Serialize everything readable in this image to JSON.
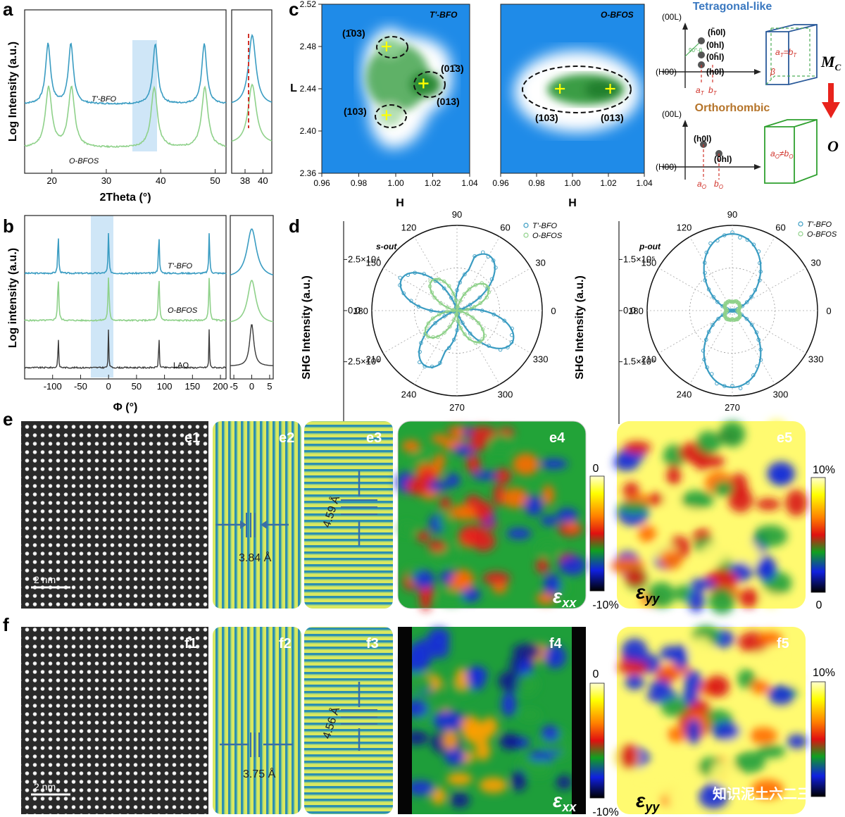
{
  "panels": {
    "a": "a",
    "b": "b",
    "c": "c",
    "d": "d",
    "e": "e",
    "f": "f"
  },
  "colors": {
    "tbfo": "#3a9cc2",
    "obfos": "#8fd18a",
    "lao": "#3a3a3a",
    "highlight": "#cfe6f7",
    "dashed_red": "#d0322a",
    "map_bg": "#1f8be8",
    "map_green": "#2f9a3f"
  },
  "chart_data": [
    {
      "id": "a-main",
      "type": "line",
      "xlabel": "2Theta (°)",
      "ylabel": "Log Intensity (a.u.)",
      "xlim": [
        15,
        52
      ],
      "xticks": [
        20,
        30,
        40,
        50
      ],
      "series": [
        {
          "name": "T'-BFO",
          "peaks": [
            19.3,
            23.5,
            39.0,
            48.0
          ]
        },
        {
          "name": "O-BFOS",
          "peaks": [
            19.4,
            23.6,
            38.8,
            48.1
          ]
        }
      ],
      "highlight_x": [
        36.2,
        41.2
      ]
    },
    {
      "id": "a-inset",
      "type": "line",
      "xlim": [
        36.5,
        41
      ],
      "xticks": [
        38,
        40
      ],
      "marker_x": 38.8
    },
    {
      "id": "b-main",
      "type": "line",
      "xlabel": "Φ (°)",
      "ylabel": "Log intensity (a.u.)",
      "xlim": [
        -150,
        210
      ],
      "xticks": [
        -100,
        -50,
        0,
        50,
        100,
        150,
        200
      ],
      "series": [
        {
          "name": "T'-BFO",
          "peaks": [
            -90,
            0,
            90,
            180
          ]
        },
        {
          "name": "O-BFOS",
          "peaks": [
            -90,
            0,
            90,
            180
          ]
        },
        {
          "name": "LAO",
          "peaks": [
            -90,
            0,
            90,
            180
          ]
        }
      ],
      "highlight_x": [
        -18,
        18
      ]
    },
    {
      "id": "b-inset",
      "type": "line",
      "xlim": [
        -6,
        6
      ],
      "xticks": [
        -5,
        0,
        5
      ]
    },
    {
      "id": "c-left",
      "type": "heatmap",
      "title": "T'-BFO",
      "xlabel": "H",
      "ylabel": "L",
      "xlim": [
        0.96,
        1.04
      ],
      "ylim": [
        2.36,
        2.52
      ],
      "xticks": [
        "0.96",
        "0.98",
        "1.00",
        "1.02",
        "1.04"
      ],
      "yticks": [
        "2.36",
        "2.40",
        "2.44",
        "2.48",
        "2.52"
      ],
      "spots": [
        {
          "label": "(1̄03)",
          "h": 0.995,
          "l": 2.48
        },
        {
          "label": "(01̄3)",
          "h": 1.015,
          "l": 2.445
        },
        {
          "label": "(103)",
          "h": 0.995,
          "l": 2.415
        },
        {
          "label": "(013)",
          "h": 1.015,
          "l": 2.445
        }
      ]
    },
    {
      "id": "c-right",
      "type": "heatmap",
      "title": "O-BFOS",
      "xlabel": "H",
      "xlim": [
        0.96,
        1.04
      ],
      "ylim": [
        2.36,
        2.52
      ],
      "xticks": [
        "0.96",
        "0.98",
        "1.00",
        "1.02",
        "1.04"
      ],
      "spots": [
        {
          "label": "(103)",
          "h": 0.993,
          "l": 2.44
        },
        {
          "label": "(013)",
          "h": 1.021,
          "l": 2.44
        }
      ]
    },
    {
      "id": "d-left",
      "type": "polar",
      "title": "s-out",
      "ylabel": "SHG Intensity (a.u.)",
      "rlabel": "2.5×10⁴",
      "angles": [
        "90",
        "60",
        "30",
        "0",
        "330",
        "300",
        "270",
        "240",
        "210",
        "180",
        "150",
        "120"
      ],
      "series": [
        {
          "name": "T'-BFO",
          "lobes": 4
        },
        {
          "name": "O-BFOS",
          "lobes": 4
        }
      ]
    },
    {
      "id": "d-right",
      "type": "polar",
      "title": "p-out",
      "ylabel": "SHG Intensity (a.u.)",
      "rlabel": "1.5×10⁵",
      "angles": [
        "90",
        "60",
        "30",
        "0",
        "330",
        "300",
        "270",
        "240",
        "210",
        "180",
        "150",
        "120"
      ],
      "series": [
        {
          "name": "T'-BFO",
          "lobes": 2
        },
        {
          "name": "O-BFOS",
          "lobes": 4
        }
      ]
    }
  ],
  "text": {
    "a_tbfo": "T'-BFO",
    "a_obfos": "O-BFOS",
    "b_tbfo": "T'-BFO",
    "b_obfos": "O-BFOS",
    "b_lao": "LAO",
    "c_tet": "Tetragonal-like",
    "c_orth": "Orthorhombic",
    "c_mc": "M",
    "c_mc_sub": "C",
    "c_o": "O",
    "c_00L": "(00L)",
    "c_H00": "(H00)",
    "c_h0l_bar": "(h̄0l)",
    "c_0hl": "(0hl)",
    "c_0hl_bar": "(0h̄l)",
    "c_h0l": "(h0l)",
    "c_aT": "a",
    "c_aT_sub": "T",
    "c_bT": "b",
    "c_bT_sub": "T",
    "c_aT_eq": "a",
    "c_aT_eq_sub": "T",
    "c_eq_b": "=b",
    "c_eq_b_sub": "T",
    "c_beta": "β",
    "c_90beta": "90°-β",
    "c_ao": "a",
    "c_ao_sub": "O",
    "c_bo": "b",
    "c_bo_sub": "O",
    "c_ao_ne": "a",
    "c_ao_ne_sub": "O",
    "c_ne_b": "≠b",
    "c_ne_b_sub": "O",
    "c2_00L": "(00L)",
    "c2_H00": "(H00)",
    "c2_h0l": "(h0l)",
    "c2_0hl": "(0hl)",
    "legend_tbfo": "T'-BFO",
    "legend_obfos": "O-BFOS",
    "e1": "e1",
    "e2": "e2",
    "e3": "e3",
    "e4": "e4",
    "e5": "e5",
    "f1": "f1",
    "f2": "f2",
    "f3": "f3",
    "f4": "f4",
    "f5": "f5",
    "scale": "2 nm",
    "scale2": "2 nm",
    "e2_d": "3.84 Å",
    "e3_d": "4.59 Å",
    "f2_d": "3.75 Å",
    "f3_d": "4.56 Å",
    "eps_xx": "ε",
    "eps_xx_sub": "xx",
    "eps_yy": "ε",
    "eps_yy_sub": "yy",
    "eps_xx2": "ε",
    "eps_xx2_sub": "xx",
    "eps_yy2": "ε",
    "eps_yy2_sub": "yy",
    "cb_xx_top": "0",
    "cb_xx_bot": "-10%",
    "cb_yy_top": "10%",
    "cb_yy_bot": "0",
    "cb_xx_top2": "0",
    "cb_xx_bot2": "-10%",
    "cb_yy_top2": "10%",
    "cb_yy_bot2": "0",
    "watermark": "知识泥土六二三"
  }
}
